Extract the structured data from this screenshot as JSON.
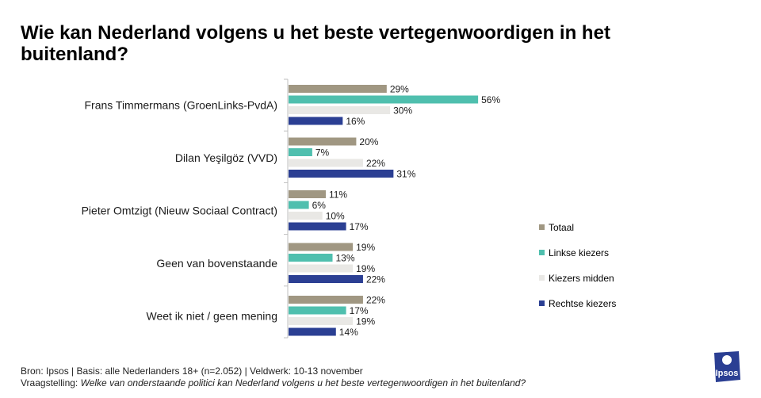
{
  "title": "Wie kan Nederland volgens u het beste vertegenwoordigen in het buitenland?",
  "chart_data": {
    "type": "bar",
    "orientation": "horizontal",
    "categories": [
      "Frans Timmermans (GroenLinks-PvdA)",
      "Dilan Yeşilgöz (VVD)",
      "Pieter Omtzigt (Nieuw Sociaal Contract)",
      "Geen van bovenstaande",
      "Weet ik niet / geen mening"
    ],
    "series": [
      {
        "name": "Totaal",
        "color": "#a09782",
        "values": [
          29,
          20,
          11,
          19,
          22
        ]
      },
      {
        "name": "Linkse kiezers",
        "color": "#4fbfae",
        "values": [
          56,
          7,
          6,
          13,
          17
        ]
      },
      {
        "name": "Kiezers midden",
        "color": "#e9e8e5",
        "values": [
          30,
          22,
          10,
          19,
          19
        ]
      },
      {
        "name": "Rechtse kiezers",
        "color": "#2b3f93",
        "values": [
          16,
          31,
          17,
          22,
          14
        ]
      }
    ],
    "value_suffix": "%",
    "xlim": [
      0,
      100
    ],
    "grid": false,
    "legend_position": "right"
  },
  "footer": {
    "source": "Bron: Ipsos | Basis: alle Nederlanders  18+ (n=2.052) | Veldwerk:  10-13  november",
    "question_label": "Vraagstelling: ",
    "question_text": "Welke van onderstaande politici kan Nederland  volgens  u het beste vertegenwoordigen  in het buitenland?"
  },
  "logo": {
    "text": "Ipsos",
    "color": "#2b3f93"
  }
}
